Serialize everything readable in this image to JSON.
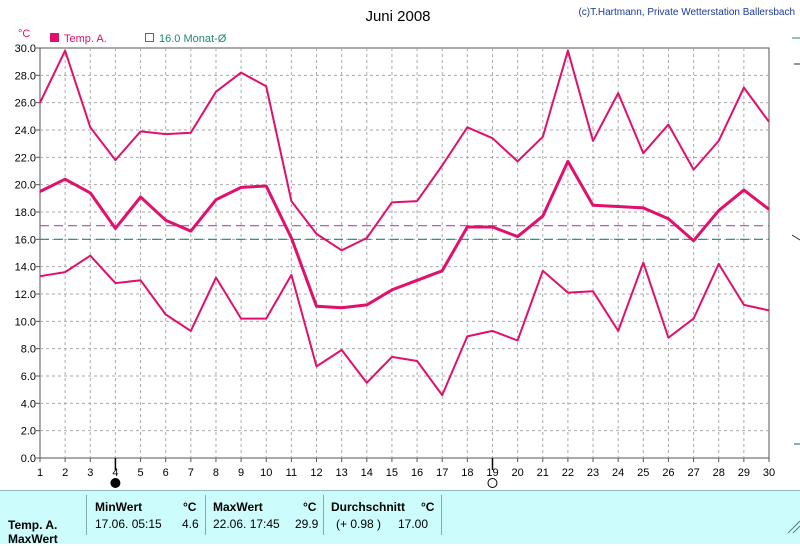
{
  "chart_data": {
    "type": "line",
    "title": "Juni 2008",
    "copyright": "(c)T.Hartmann, Private Wetterstation Ballersbach",
    "ylabel": "°C",
    "ylim": [
      0,
      30
    ],
    "yticks": [
      "0.0",
      "2.0",
      "4.0",
      "6.0",
      "8.0",
      "10.0",
      "12.0",
      "14.0",
      "16.0",
      "18.0",
      "20.0",
      "22.0",
      "24.0",
      "26.0",
      "28.0",
      "30.0"
    ],
    "x": [
      1,
      2,
      3,
      4,
      5,
      6,
      7,
      8,
      9,
      10,
      11,
      12,
      13,
      14,
      15,
      16,
      17,
      18,
      19,
      20,
      21,
      22,
      23,
      24,
      25,
      26,
      27,
      28,
      29,
      30
    ],
    "xlim": [
      1,
      30
    ],
    "grid": true,
    "legend": {
      "placement": "top-left",
      "items": [
        {
          "label": "Temp. A.",
          "color": "#e0106c",
          "marker": "filled-square"
        },
        {
          "label": "16.0 Monat-Ø",
          "color": "#1a8a78",
          "marker": "open-square"
        }
      ]
    },
    "series": [
      {
        "values": [
          26.0,
          29.8,
          24.2,
          21.8,
          23.9,
          23.7,
          23.8,
          26.8,
          28.2,
          27.2,
          18.8,
          16.4,
          15.2,
          16.1,
          18.7,
          18.8,
          21.4,
          24.2,
          23.4,
          21.7,
          23.5,
          29.8,
          23.2,
          26.7,
          22.3,
          24.4,
          21.1,
          23.2,
          27.1,
          24.6
        ],
        "color": "#e0106c",
        "width": 2
      },
      {
        "values": [
          19.5,
          20.4,
          19.4,
          16.8,
          19.1,
          17.4,
          16.6,
          18.9,
          19.8,
          19.9,
          16.1,
          11.1,
          11.0,
          11.2,
          12.3,
          13.0,
          13.7,
          16.9,
          16.9,
          16.2,
          17.7,
          21.7,
          18.5,
          18.4,
          18.3,
          17.5,
          15.9,
          18.1,
          19.6,
          18.2
        ],
        "color": "#e0106c",
        "width": 3
      },
      {
        "values": [
          13.3,
          13.6,
          14.8,
          12.8,
          13.0,
          10.5,
          9.3,
          13.2,
          10.2,
          10.2,
          13.4,
          6.7,
          7.9,
          5.5,
          7.4,
          7.1,
          4.6,
          8.9,
          9.3,
          8.6,
          13.7,
          12.1,
          12.2,
          9.3,
          14.3,
          8.8,
          10.2,
          14.2,
          11.2,
          10.8
        ],
        "color": "#e0106c",
        "width": 2
      }
    ],
    "reference_lines": [
      {
        "value": 17.0,
        "color": "#c040b0",
        "style": "dashed"
      },
      {
        "value": 16.0,
        "color": "#1a8a78",
        "style": "dashed"
      }
    ],
    "moon_phases": [
      {
        "day": 4,
        "phase": "new"
      },
      {
        "day": 19,
        "phase": "full"
      }
    ]
  },
  "stats": {
    "row_label_1": "Temp. A.",
    "row_label_2": "MaxWert",
    "min_header": "MinWert",
    "min_unit": "°C",
    "min_time": "17.06.  05:15",
    "min_value": "4.6",
    "max_header": "MaxWert",
    "max_unit": "°C",
    "max_time": "22.06.  17:45",
    "max_value": "29.9",
    "avg_header": "Durchschnitt",
    "avg_unit": "°C",
    "avg_delta": "(+ 0.98 )",
    "avg_value": "17.00"
  }
}
